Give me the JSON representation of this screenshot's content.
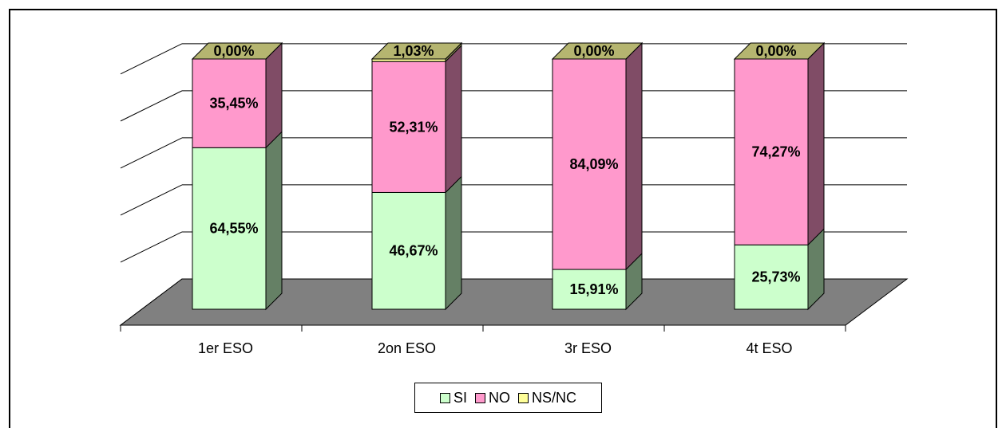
{
  "chart_data": {
    "type": "bar",
    "stacked": true,
    "three_d": true,
    "categories": [
      "1er ESO",
      "2on ESO",
      "3r ESO",
      "4t ESO"
    ],
    "series": [
      {
        "name": "SI",
        "values": [
          64.55,
          46.67,
          15.91,
          25.73
        ],
        "labels": [
          "64,55%",
          "46,67%",
          "15,91%",
          "25,73%"
        ],
        "color": "#ccffcc",
        "side_color": "#658065"
      },
      {
        "name": "NO",
        "values": [
          35.45,
          52.31,
          84.09,
          74.27
        ],
        "labels": [
          "35,45%",
          "52,31%",
          "84,09%",
          "74,27%"
        ],
        "color": "#ff99cc",
        "side_color": "#804c66"
      },
      {
        "name": "NS/NC",
        "values": [
          0.0,
          1.03,
          0.0,
          0.0
        ],
        "labels": [
          "0,00%",
          "1,03%",
          "0,00%",
          "0,00%"
        ],
        "color": "#ffff99",
        "side_color": "#7f7f4c"
      }
    ],
    "ylim": [
      0,
      100
    ],
    "grid": true,
    "floor_color": "#808080",
    "legend_position": "bottom"
  }
}
